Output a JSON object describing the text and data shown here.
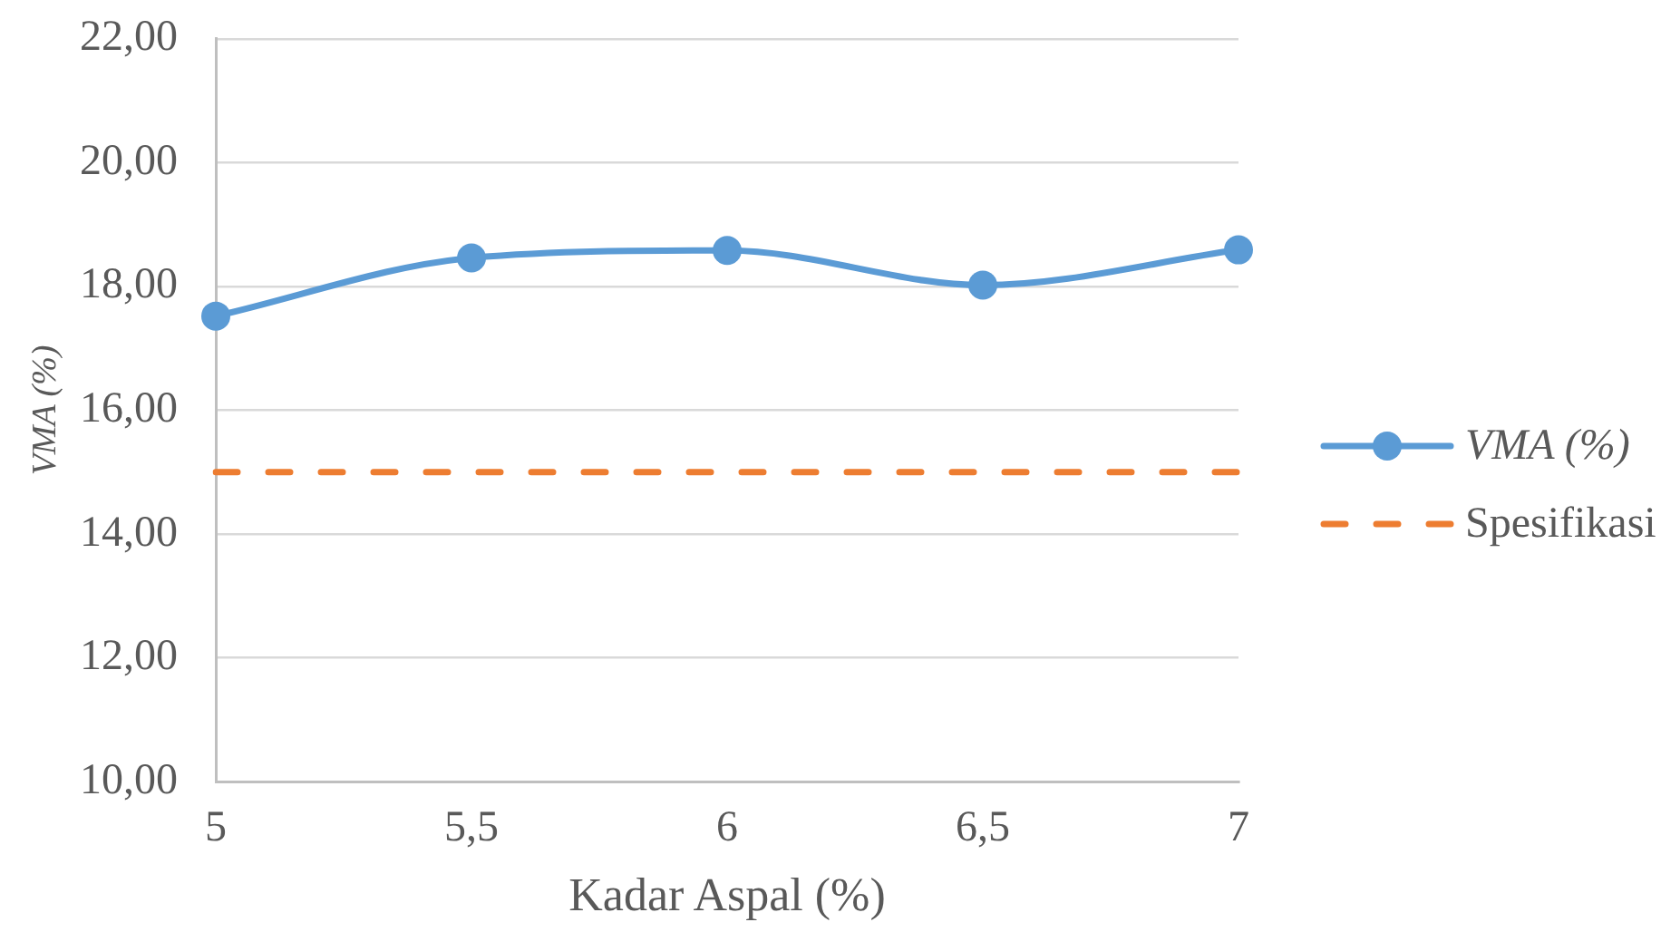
{
  "chart_data": {
    "type": "line",
    "xlabel": "Kadar Aspal (%)",
    "ylabel": "VMA (%)",
    "categories": [
      "5",
      "5,5",
      "6",
      "6,5",
      "7"
    ],
    "series": [
      {
        "name": "VMA (%)",
        "color": "#5b9bd5",
        "values": [
          17.52,
          18.46,
          18.58,
          18.02,
          18.59
        ],
        "marker": "circle",
        "line_style": "solid"
      },
      {
        "name": "Spesifikasi",
        "color": "#ed7d31",
        "values": [
          15,
          15,
          15,
          15,
          15
        ],
        "marker": "none",
        "line_style": "dashed"
      }
    ],
    "ylim": [
      10,
      22
    ],
    "yticks": [
      {
        "value": 10,
        "label": "10,00"
      },
      {
        "value": 12,
        "label": "12,00"
      },
      {
        "value": 14,
        "label": "14,00"
      },
      {
        "value": 16,
        "label": "16,00"
      },
      {
        "value": 18,
        "label": "18,00"
      },
      {
        "value": 20,
        "label": "20,00"
      },
      {
        "value": 22,
        "label": "22,00"
      }
    ],
    "grid": "y",
    "legend": "right"
  }
}
